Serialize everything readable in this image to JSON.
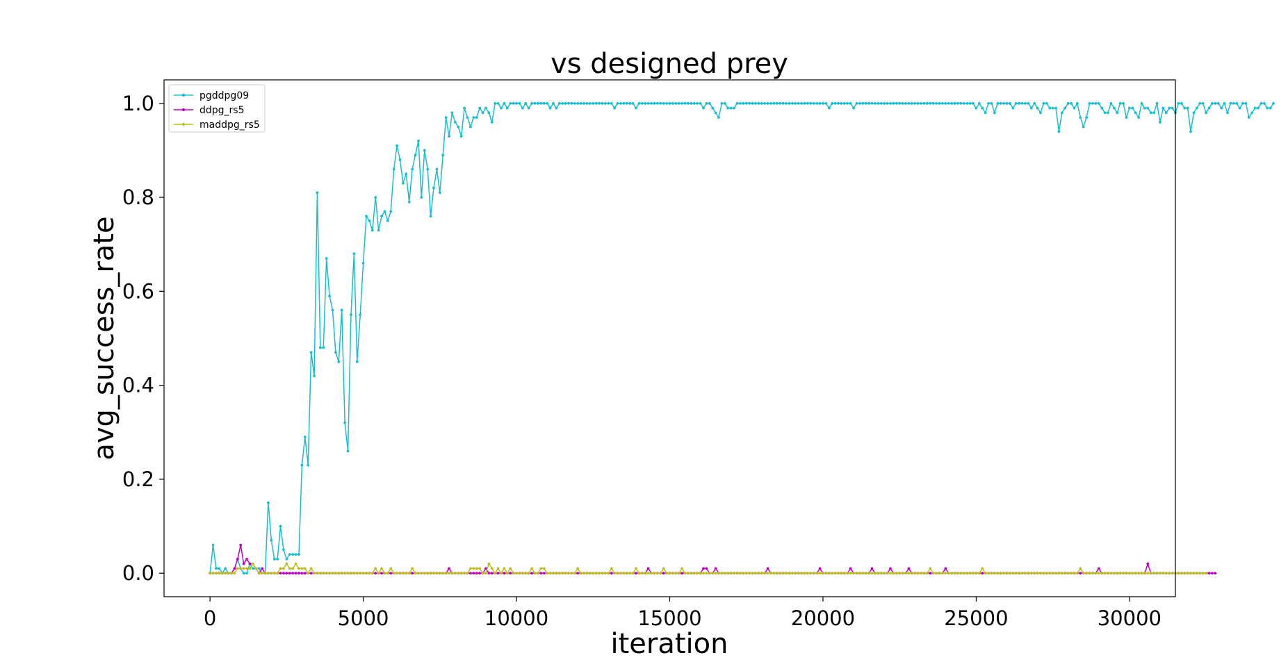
{
  "chart_data": {
    "type": "line",
    "title": "vs designed prey",
    "xlabel": "iteration",
    "ylabel": "avg_success_rate",
    "xlim": [
      -1500,
      31500
    ],
    "ylim": [
      -0.05,
      1.05
    ],
    "xticks": [
      0,
      5000,
      10000,
      15000,
      20000,
      25000,
      30000
    ],
    "yticks": [
      0.0,
      0.2,
      0.4,
      0.6,
      0.8,
      1.0
    ],
    "xtick_labels": [
      "0",
      "5000",
      "10000",
      "15000",
      "20000",
      "25000",
      "30000"
    ],
    "ytick_labels": [
      "0.0",
      "0.2",
      "0.4",
      "0.6",
      "0.8",
      "1.0"
    ],
    "grid": false,
    "legend_position": "top-left",
    "x_step": 100,
    "series": [
      {
        "name": "pgddpg09",
        "color": "#17becf",
        "values": [
          0,
          0.06,
          0.01,
          0.01,
          0,
          0.01,
          0,
          0,
          0.01,
          0.03,
          0.01,
          0,
          0,
          0.02,
          0.01,
          0.01,
          0.01,
          0,
          0,
          0.15,
          0.07,
          0.03,
          0.03,
          0.1,
          0.05,
          0.03,
          0.04,
          0.04,
          0.04,
          0.04,
          0.23,
          0.29,
          0.23,
          0.47,
          0.42,
          0.81,
          0.48,
          0.48,
          0.67,
          0.59,
          0.56,
          0.47,
          0.45,
          0.56,
          0.32,
          0.26,
          0.55,
          0.68,
          0.45,
          0.55,
          0.66,
          0.76,
          0.75,
          0.73,
          0.8,
          0.73,
          0.76,
          0.77,
          0.75,
          0.77,
          0.86,
          0.91,
          0.88,
          0.83,
          0.85,
          0.79,
          0.86,
          0.89,
          0.92,
          0.8,
          0.9,
          0.86,
          0.76,
          0.82,
          0.86,
          0.81,
          0.89,
          0.97,
          0.93,
          0.98,
          0.96,
          0.95,
          0.93,
          0.99,
          0.97,
          0.95,
          0.97,
          0.97,
          0.99,
          0.98,
          0.99,
          0.98,
          0.96,
          1,
          1,
          0.99,
          1,
          0.99,
          1,
          1,
          1,
          1,
          0.99,
          1,
          0.99,
          1,
          1,
          1,
          1,
          1,
          1,
          0.99,
          1,
          0.99,
          1,
          1,
          1,
          1,
          1,
          1,
          1,
          1,
          1,
          1,
          1,
          1,
          1,
          1,
          1,
          1,
          1,
          1,
          0.99,
          1,
          1,
          1,
          1,
          1,
          1,
          0.99,
          1,
          1,
          1,
          1,
          1,
          1,
          1,
          1,
          1,
          1,
          1,
          1,
          1,
          1,
          1,
          1,
          1,
          1,
          1,
          1,
          1,
          0.99,
          1,
          1,
          0.99,
          0.98,
          0.97,
          1,
          1,
          0.99,
          0.99,
          0.99,
          1,
          1,
          1,
          1,
          1,
          1,
          1,
          1,
          1,
          1,
          1,
          1,
          1,
          1,
          1,
          1,
          1,
          1,
          1,
          1,
          1,
          1,
          1,
          1,
          1,
          1,
          1,
          1,
          1,
          1,
          0.99,
          1,
          1,
          1,
          1,
          1,
          1,
          1,
          0.99,
          1,
          1,
          1,
          1,
          1,
          1,
          1,
          1,
          1,
          1,
          1,
          1,
          1,
          1,
          1,
          1,
          1,
          1,
          1,
          1,
          1,
          1,
          1,
          1,
          1,
          1,
          1,
          1,
          1,
          1,
          1,
          1,
          1,
          1,
          1,
          1,
          1,
          1,
          1,
          0.99,
          1,
          0.99,
          0.98,
          1,
          1,
          0.98,
          1,
          1,
          1,
          1,
          1,
          0.99,
          1,
          1,
          1,
          1,
          1,
          0.99,
          1,
          0.99,
          0.98,
          1,
          1,
          0.99,
          0.99,
          0.99,
          0.94,
          0.98,
          0.99,
          1,
          1,
          0.99,
          1,
          0.97,
          0.95,
          0.97,
          1,
          1,
          1,
          1,
          0.99,
          0.98,
          0.98,
          1,
          0.99,
          0.98,
          1,
          1,
          0.97,
          0.99,
          0.99,
          0.98,
          0.97,
          1,
          0.99,
          0.99,
          0.98,
          0.98,
          1,
          0.96,
          0.99,
          0.98,
          0.99,
          0.99,
          0.98,
          1,
          1,
          0.99,
          0.99,
          0.94,
          0.98,
          0.99,
          1,
          1,
          0.98,
          0.99,
          1,
          1,
          1,
          0.99,
          1,
          0.98,
          1,
          1,
          1,
          0.99,
          1,
          1,
          0.97,
          0.98,
          0.99,
          0.99,
          1,
          1,
          0.99,
          0.99,
          1
        ]
      },
      {
        "name": "ddpg_rs5",
        "color": "#bf00bf",
        "values": [
          0,
          0,
          0,
          0,
          0,
          0,
          0,
          0,
          0.01,
          0.03,
          0.06,
          0.02,
          0.03,
          0.02,
          0.02,
          0.01,
          0,
          0.01,
          0,
          0,
          0,
          0,
          0,
          0,
          0,
          0,
          0,
          0,
          0,
          0,
          0,
          0,
          0,
          0,
          0,
          0,
          0,
          0,
          0,
          0,
          0,
          0,
          0,
          0,
          0,
          0,
          0,
          0,
          0,
          0,
          0,
          0,
          0,
          0,
          0,
          0,
          0,
          0,
          0,
          0,
          0,
          0,
          0,
          0,
          0,
          0,
          0,
          0,
          0,
          0,
          0,
          0,
          0,
          0,
          0,
          0,
          0,
          0,
          0.01,
          0,
          0,
          0,
          0,
          0,
          0,
          0,
          0,
          0,
          0,
          0,
          0.01,
          0,
          0,
          0,
          0,
          0,
          0,
          0,
          0,
          0,
          0,
          0,
          0,
          0,
          0,
          0,
          0,
          0,
          0,
          0,
          0,
          0,
          0,
          0,
          0,
          0,
          0,
          0,
          0,
          0,
          0,
          0,
          0,
          0,
          0,
          0,
          0,
          0,
          0,
          0,
          0,
          0,
          0,
          0,
          0,
          0,
          0,
          0,
          0,
          0,
          0,
          0,
          0,
          0.01,
          0,
          0,
          0,
          0,
          0,
          0,
          0,
          0,
          0,
          0,
          0,
          0,
          0,
          0,
          0,
          0,
          0,
          0.01,
          0.01,
          0,
          0,
          0.01,
          0,
          0,
          0,
          0,
          0,
          0,
          0,
          0,
          0,
          0,
          0,
          0,
          0,
          0,
          0,
          0,
          0.01,
          0,
          0,
          0,
          0,
          0,
          0,
          0,
          0,
          0,
          0,
          0,
          0,
          0,
          0,
          0,
          0,
          0.01,
          0,
          0,
          0,
          0,
          0,
          0,
          0,
          0,
          0,
          0.01,
          0,
          0,
          0,
          0,
          0,
          0,
          0.01,
          0,
          0,
          0,
          0,
          0,
          0.01,
          0,
          0,
          0,
          0,
          0,
          0.01,
          0,
          0,
          0,
          0,
          0,
          0,
          0,
          0,
          0,
          0,
          0,
          0.01,
          0,
          0,
          0,
          0,
          0,
          0,
          0,
          0,
          0,
          0,
          0,
          0,
          0,
          0,
          0,
          0,
          0,
          0,
          0,
          0,
          0,
          0,
          0,
          0,
          0,
          0,
          0,
          0,
          0,
          0,
          0,
          0,
          0,
          0,
          0,
          0,
          0,
          0,
          0,
          0,
          0,
          0,
          0,
          0,
          0,
          0,
          0,
          0,
          0,
          0.01,
          0,
          0,
          0,
          0,
          0,
          0,
          0,
          0,
          0,
          0,
          0,
          0,
          0,
          0,
          0,
          0.02,
          0,
          0,
          0,
          0,
          0,
          0,
          0,
          0,
          0,
          0,
          0,
          0,
          0,
          0,
          0,
          0,
          0,
          0,
          0,
          0,
          0,
          0
        ]
      },
      {
        "name": "maddpg_rs5",
        "color": "#bcbd22",
        "values": [
          0,
          0,
          0,
          0,
          0,
          0,
          0,
          0,
          0,
          0.01,
          0.01,
          0.01,
          0.01,
          0.01,
          0.02,
          0.01,
          0,
          0,
          0,
          0,
          0,
          0,
          0,
          0.01,
          0.01,
          0.02,
          0.01,
          0.01,
          0.02,
          0.01,
          0.01,
          0.01,
          0,
          0.01,
          0,
          0,
          0,
          0,
          0,
          0,
          0,
          0,
          0,
          0,
          0,
          0,
          0,
          0,
          0,
          0,
          0,
          0,
          0,
          0,
          0.01,
          0,
          0.01,
          0,
          0,
          0.01,
          0,
          0,
          0,
          0,
          0,
          0,
          0.01,
          0,
          0,
          0,
          0,
          0,
          0,
          0,
          0,
          0,
          0,
          0,
          0,
          0,
          0,
          0,
          0,
          0,
          0,
          0.01,
          0.01,
          0.01,
          0.01,
          0,
          0,
          0.02,
          0.01,
          0,
          0.01,
          0,
          0.01,
          0,
          0.01,
          0,
          0,
          0,
          0,
          0,
          0,
          0.01,
          0,
          0,
          0.01,
          0.01,
          0,
          0,
          0,
          0,
          0,
          0,
          0,
          0,
          0,
          0,
          0.01,
          0,
          0,
          0,
          0,
          0,
          0,
          0,
          0,
          0,
          0,
          0.01,
          0,
          0,
          0,
          0,
          0,
          0,
          0,
          0.01,
          0,
          0,
          0,
          0,
          0,
          0,
          0,
          0,
          0.01,
          0,
          0,
          0,
          0,
          0,
          0.01,
          0,
          0,
          0,
          0,
          0,
          0,
          0,
          0,
          0,
          0,
          0,
          0,
          0,
          0,
          0,
          0,
          0,
          0,
          0,
          0,
          0,
          0,
          0,
          0,
          0,
          0,
          0,
          0,
          0,
          0,
          0,
          0,
          0,
          0,
          0,
          0,
          0,
          0,
          0,
          0,
          0,
          0,
          0,
          0,
          0,
          0,
          0,
          0,
          0,
          0,
          0,
          0,
          0,
          0,
          0,
          0,
          0,
          0,
          0,
          0,
          0,
          0,
          0,
          0,
          0,
          0,
          0,
          0,
          0,
          0,
          0,
          0,
          0,
          0,
          0,
          0,
          0,
          0,
          0,
          0,
          0.01,
          0,
          0,
          0,
          0,
          0,
          0,
          0,
          0,
          0,
          0,
          0,
          0,
          0,
          0,
          0,
          0,
          0.01,
          0,
          0,
          0,
          0,
          0,
          0,
          0,
          0,
          0,
          0,
          0,
          0,
          0,
          0,
          0,
          0,
          0,
          0,
          0,
          0,
          0,
          0,
          0,
          0,
          0,
          0,
          0,
          0,
          0,
          0,
          0,
          0.01,
          0,
          0,
          0,
          0,
          0,
          0,
          0,
          0,
          0,
          0,
          0,
          0,
          0,
          0,
          0,
          0,
          0,
          0,
          0,
          0,
          0,
          0,
          0,
          0,
          0,
          0,
          0,
          0,
          0,
          0,
          0,
          0,
          0,
          0,
          0,
          0,
          0,
          0,
          0,
          0,
          0
        ]
      }
    ]
  }
}
